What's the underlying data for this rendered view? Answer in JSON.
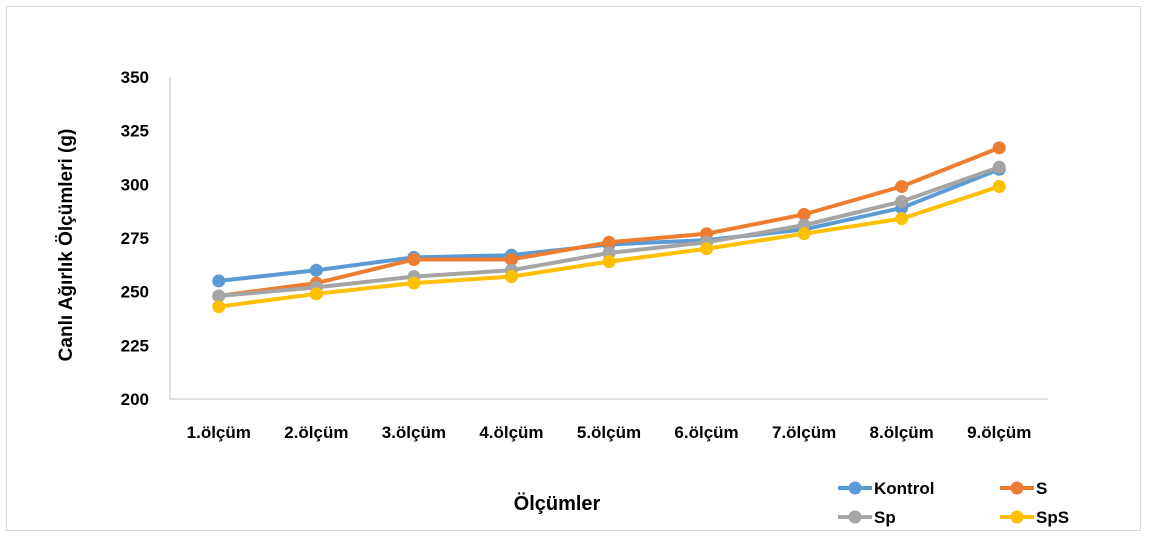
{
  "chart_data": {
    "type": "line",
    "title": "",
    "xlabel": "Ölçümler",
    "ylabel": "Canlı Ağırlık Ölçümleri (g)",
    "categories": [
      "1.ölçüm",
      "2.ölçüm",
      "3.ölçüm",
      "4.ölçüm",
      "5.ölçüm",
      "6.ölçüm",
      "7.ölçüm",
      "8.ölçüm",
      "9.ölçüm"
    ],
    "ylim": [
      200,
      350
    ],
    "yticks": [
      "200",
      "225",
      "250",
      "275",
      "300",
      "325",
      "350"
    ],
    "grid": false,
    "legend_position": "bottom-right",
    "series": [
      {
        "name": "Kontrol",
        "color": "#5b9bd5",
        "values": [
          255,
          260,
          266,
          267,
          272,
          274,
          279,
          289,
          307
        ]
      },
      {
        "name": "S",
        "color": "#ed7d31",
        "values": [
          248,
          254,
          265,
          265,
          273,
          277,
          286,
          299,
          317
        ]
      },
      {
        "name": "Sp",
        "color": "#a5a5a5",
        "values": [
          248,
          252,
          257,
          260,
          268,
          273,
          281,
          292,
          308
        ]
      },
      {
        "name": "SpS",
        "color": "#ffc000",
        "values": [
          243,
          249,
          254,
          257,
          264,
          270,
          277,
          284,
          299
        ]
      }
    ]
  }
}
